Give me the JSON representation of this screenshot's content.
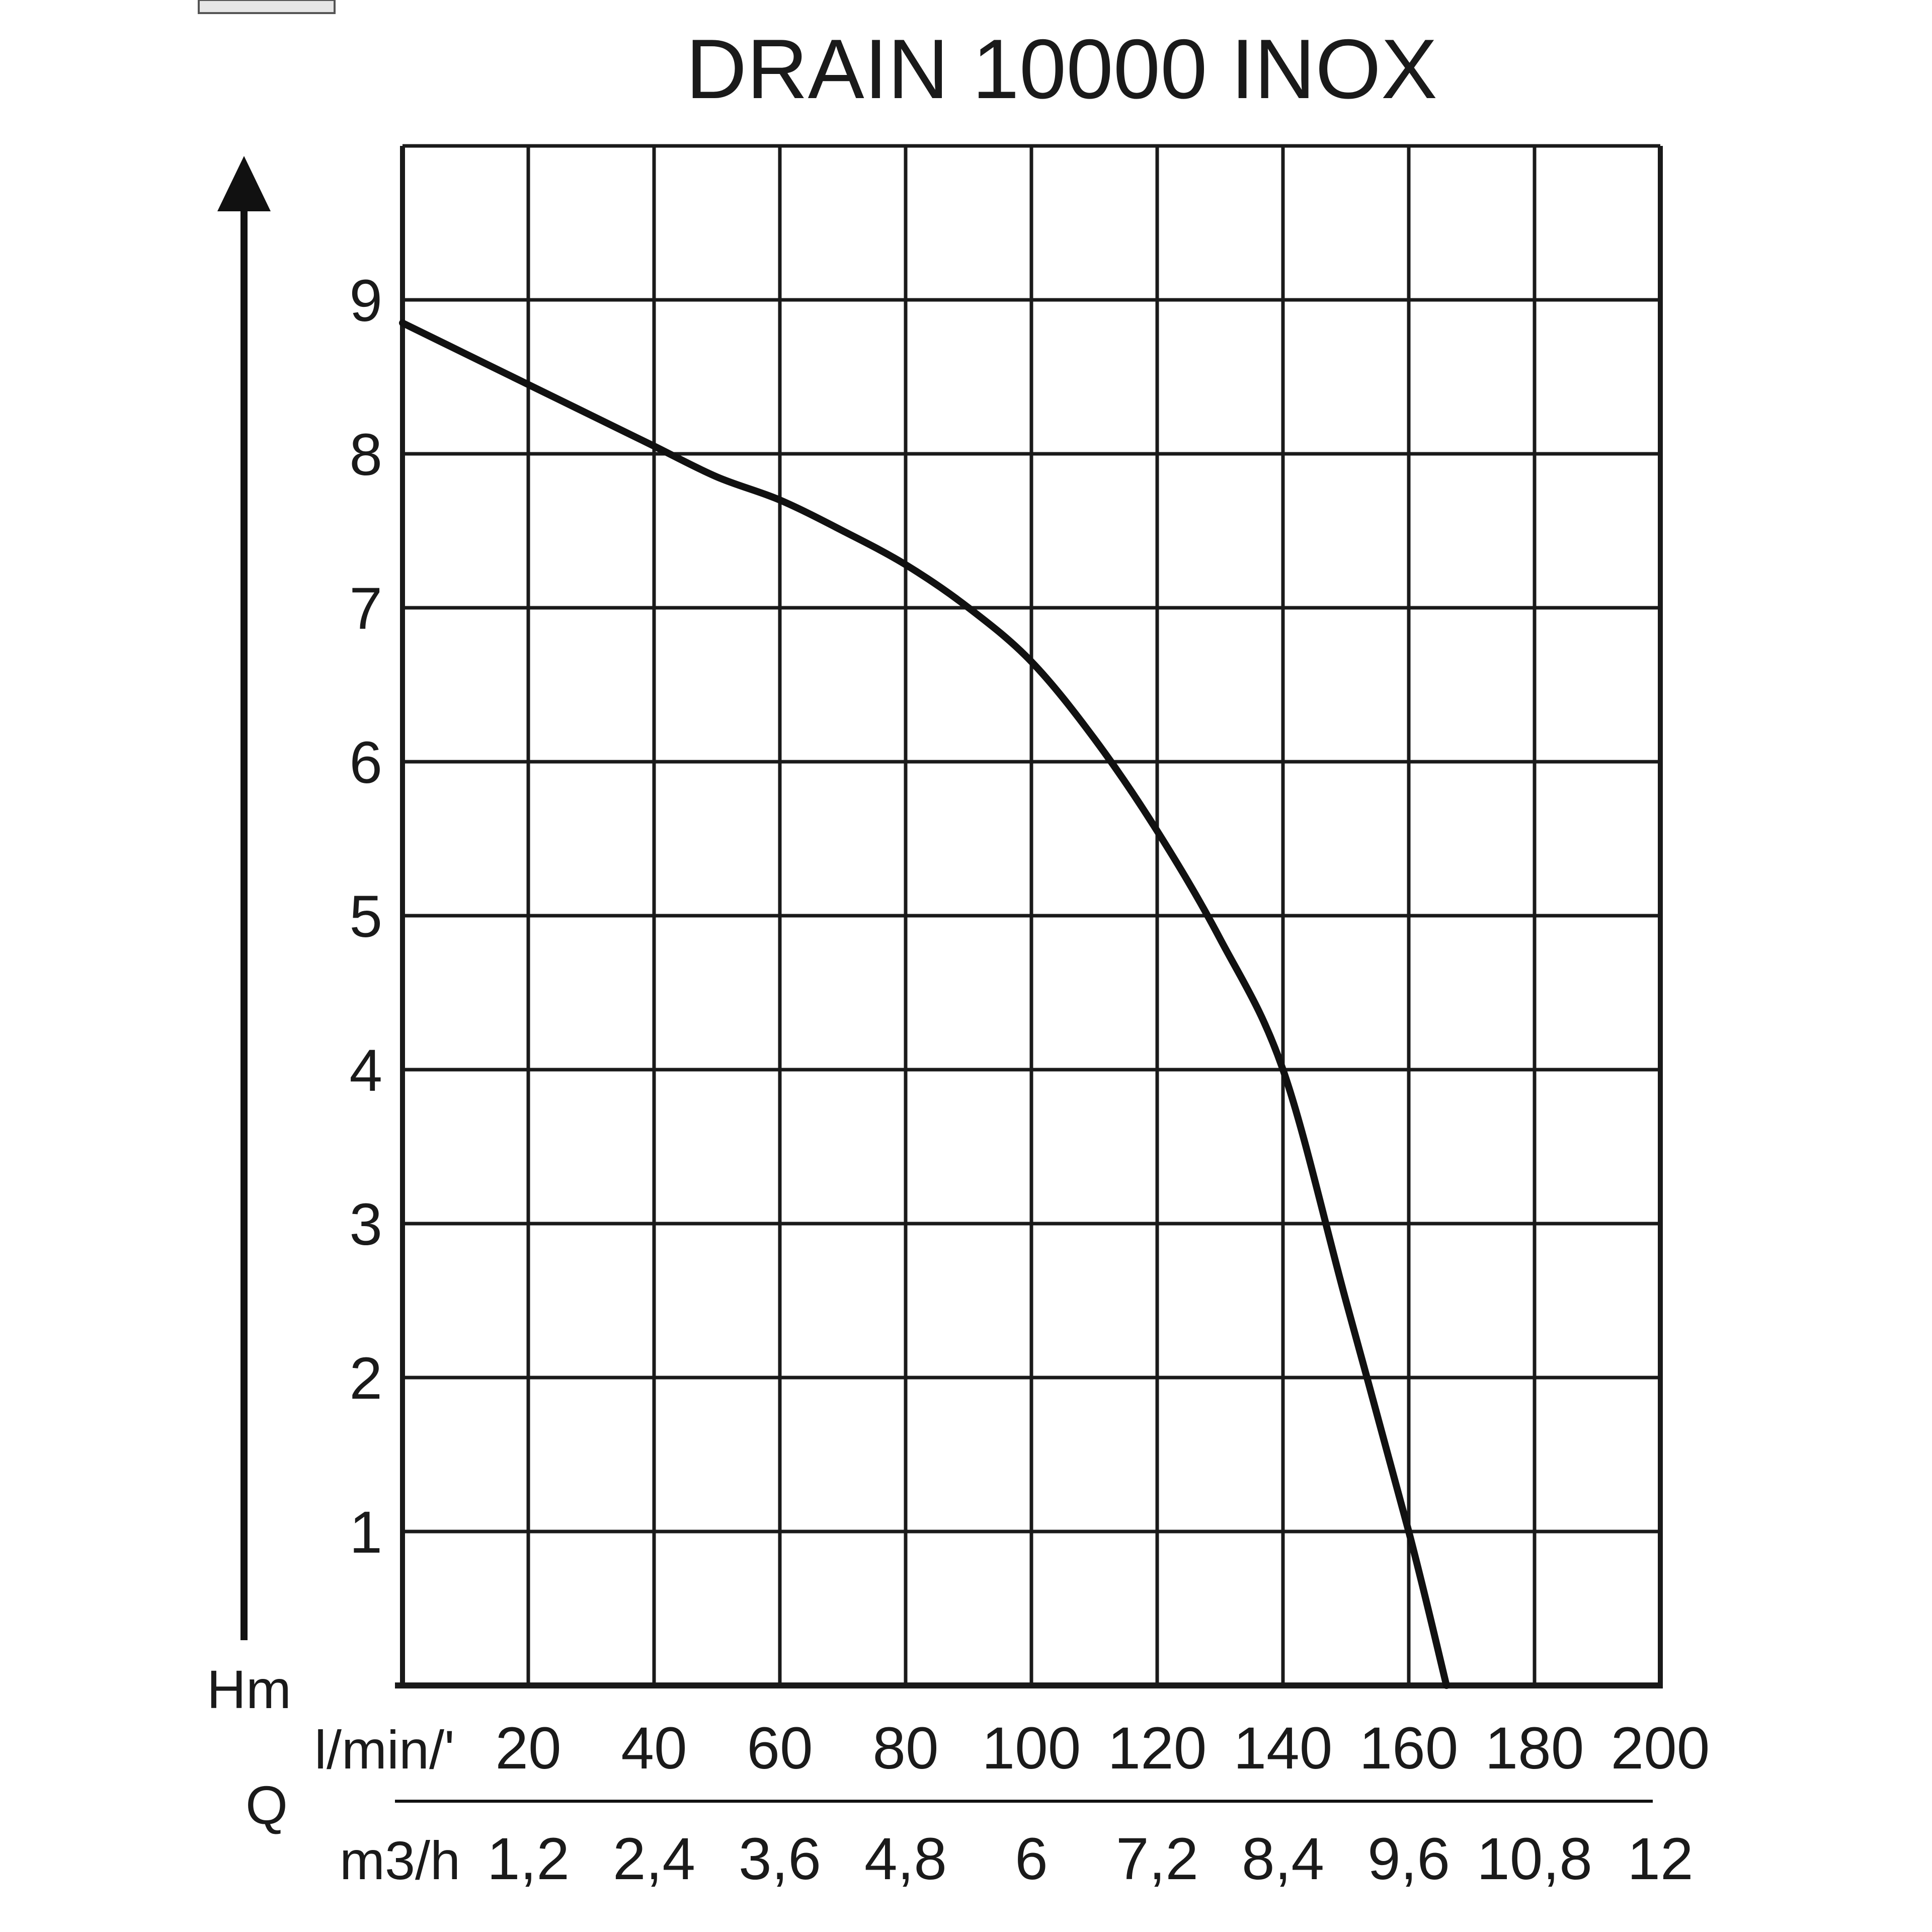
{
  "chart_data": {
    "type": "line",
    "title": "DRAIN 10000 INOX",
    "y_axis": {
      "label": "Hm",
      "range": [
        0,
        10
      ],
      "ticks": [
        "1",
        "2",
        "3",
        "4",
        "5",
        "6",
        "7",
        "8",
        "9"
      ]
    },
    "x_axis": {
      "label": "Q",
      "range": [
        0,
        200
      ],
      "primary_unit": "l/min/'",
      "primary_ticks": [
        "20",
        "40",
        "60",
        "80",
        "100",
        "120",
        "140",
        "160",
        "180",
        "200"
      ],
      "secondary_unit": "m3/h",
      "secondary_ticks": [
        "1,2",
        "2,4",
        "3,6",
        "4,8",
        "6",
        "7,2",
        "8,4",
        "9,6",
        "10,8",
        "12"
      ]
    },
    "grid": true,
    "series": [
      {
        "x": [
          0,
          10,
          20,
          30,
          40,
          50,
          60,
          70,
          80,
          90,
          100,
          110,
          120,
          130,
          140,
          150,
          160,
          166
        ],
        "y": [
          8.85,
          8.65,
          8.45,
          8.25,
          8.05,
          7.85,
          7.7,
          7.5,
          7.28,
          7.0,
          6.65,
          6.15,
          5.55,
          4.85,
          4.0,
          2.5,
          1.0,
          0
        ]
      }
    ],
    "colors": {
      "line": "#111111",
      "grid": "#1a1a1a",
      "background": "#ffffff"
    }
  }
}
